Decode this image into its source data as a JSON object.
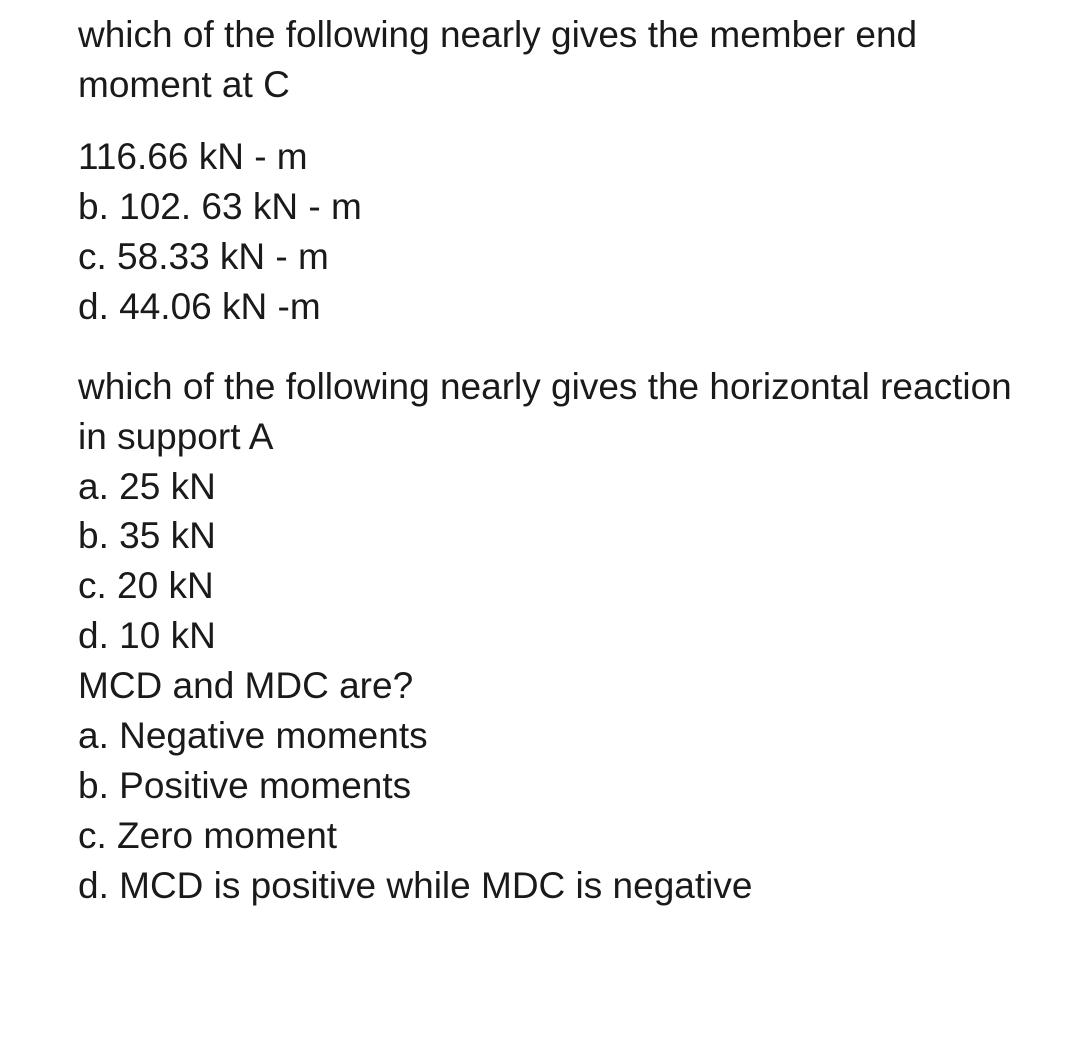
{
  "questions": [
    {
      "prompt": "which of the following nearly gives the member end moment at C",
      "options": [
        "116.66 kN - m",
        "b. 102. 63 kN - m",
        "c. 58.33 kN - m",
        "d. 44.06 kN -m"
      ]
    },
    {
      "prompt": "which of the following nearly gives the horizontal reaction in support A",
      "options": [
        "a. 25 kN",
        "b. 35 kN",
        "c. 20 kN",
        "d. 10 kN"
      ]
    },
    {
      "prompt": "MCD and MDC are?",
      "options": [
        "a. Negative moments",
        "b. Positive moments",
        "c. Zero moment",
        "d. MCD is positive while MDC is negative"
      ]
    }
  ]
}
